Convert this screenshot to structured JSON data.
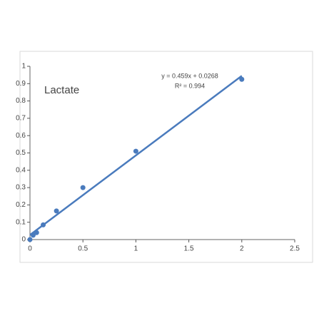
{
  "chart_data": {
    "type": "scatter",
    "annotation": "Lactate",
    "x": [
      0,
      0.03,
      0.0625,
      0.125,
      0.25,
      0.5,
      1,
      2
    ],
    "values": [
      0,
      0.025,
      0.04,
      0.085,
      0.165,
      0.3,
      0.51,
      0.925
    ],
    "color": "#4a7bbd",
    "trendline": {
      "slope": 0.459,
      "intercept": 0.0268,
      "label": "y = 0.459x + 0.0268",
      "r2_label": "R² = 0.994",
      "color": "#4a7bbd"
    },
    "xlim": [
      0,
      2.5
    ],
    "xticks": [
      0,
      0.5,
      1,
      1.5,
      2,
      2.5
    ],
    "ylim": [
      0,
      1
    ],
    "yticks": [
      0,
      0.1,
      0.2,
      0.3,
      0.4,
      0.5,
      0.6,
      0.7,
      0.8,
      0.9,
      1
    ],
    "grid": false
  }
}
